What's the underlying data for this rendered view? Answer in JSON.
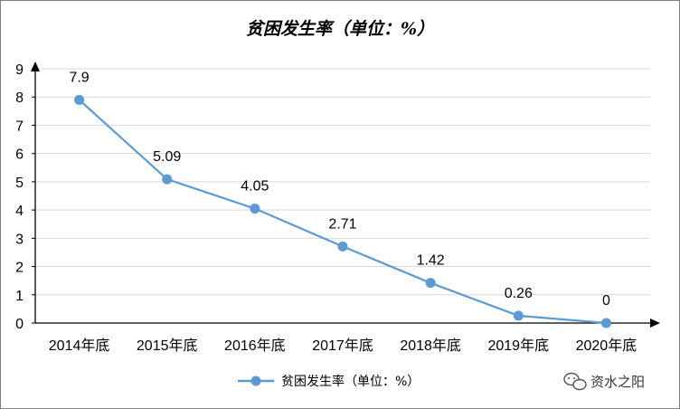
{
  "chart_data": {
    "type": "line",
    "title": "贫困发生率（单位：%）",
    "categories": [
      "2014年底",
      "2015年底",
      "2016年底",
      "2017年底",
      "2018年底",
      "2019年底",
      "2020年底"
    ],
    "series": [
      {
        "name": "贫困发生率（单位：%）",
        "values": [
          7.9,
          5.09,
          4.05,
          2.71,
          1.42,
          0.26,
          0
        ],
        "data_labels": [
          "7.9",
          "5.09",
          "4.05",
          "2.71",
          "1.42",
          "0.26",
          "0"
        ],
        "color": "#5b9bd5"
      }
    ],
    "ylim": [
      0,
      9
    ],
    "yticks": [
      "0",
      "1",
      "2",
      "3",
      "4",
      "5",
      "6",
      "7",
      "8",
      "9"
    ],
    "grid": true,
    "legend": "bottom"
  },
  "watermark": {
    "text": "资水之阳",
    "icon": "wechat-icon"
  },
  "colors": {
    "line": "#5b9bd5",
    "grid": "#d9d9d9",
    "axis": "#000000"
  }
}
